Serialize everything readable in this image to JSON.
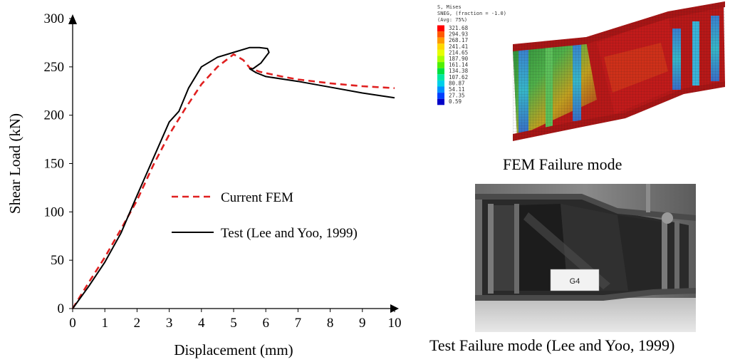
{
  "chart_data": {
    "type": "line",
    "xlabel": "Displacement (mm)",
    "ylabel": "Shear Load (kN)",
    "xlim": [
      0,
      10
    ],
    "ylim": [
      0,
      300
    ],
    "x_ticks": [
      "0",
      "1",
      "2",
      "3",
      "4",
      "5",
      "6",
      "7",
      "8",
      "9",
      "10"
    ],
    "y_ticks": [
      "0",
      "50",
      "100",
      "150",
      "200",
      "250",
      "300"
    ],
    "grid": false,
    "legend_position": "center",
    "series": [
      {
        "name": "Current FEM",
        "style": "dashed",
        "color": "#e02020",
        "x": [
          0,
          0.5,
          1,
          1.5,
          2,
          2.5,
          3,
          3.5,
          4,
          4.5,
          5.0,
          5.3,
          5.5,
          5.8,
          6.5,
          7,
          8,
          9,
          10
        ],
        "y": [
          0,
          27,
          53,
          82,
          112,
          148,
          180,
          207,
          232,
          250,
          263,
          257,
          249,
          245,
          240,
          237,
          233,
          230,
          228
        ]
      },
      {
        "name": "Test (Lee and Yoo, 1999)",
        "style": "solid",
        "color": "#000000",
        "x": [
          0,
          0.5,
          1,
          1.5,
          2,
          2.5,
          3,
          3.3,
          3.6,
          4,
          4.5,
          5.0,
          5.5,
          5.8,
          6.05,
          6.1,
          5.85,
          5.6,
          5.5,
          5.7,
          6,
          7,
          8,
          9,
          10
        ],
        "y": [
          0,
          23,
          48,
          78,
          117,
          155,
          193,
          204,
          228,
          250,
          260,
          265,
          270,
          270,
          269,
          265,
          254,
          248,
          248,
          244,
          240,
          235,
          229,
          223,
          218
        ]
      }
    ]
  },
  "fem": {
    "legend_title_1": "S, Mises",
    "legend_title_2": "SNEG, (fraction = -1.0)",
    "legend_title_3": "(Avg: 75%)",
    "contour_values": [
      "321.68",
      "294.93",
      "268.17",
      "241.41",
      "214.65",
      "187.90",
      "161.14",
      "134.38",
      "107.62",
      "80.87",
      "54.11",
      "27.35",
      "0.59"
    ],
    "contour_colors": [
      "#ff0000",
      "#ff5a00",
      "#ff9a00",
      "#ffd800",
      "#e6ff00",
      "#a8ff00",
      "#50f000",
      "#00e040",
      "#00e8a0",
      "#00d0e8",
      "#0090ff",
      "#0040ff",
      "#0000c8"
    ],
    "caption": "FEM Failure mode"
  },
  "test": {
    "specimen_tag": "G4",
    "caption": "Test Failure mode (Lee and Yoo, 1999)"
  }
}
